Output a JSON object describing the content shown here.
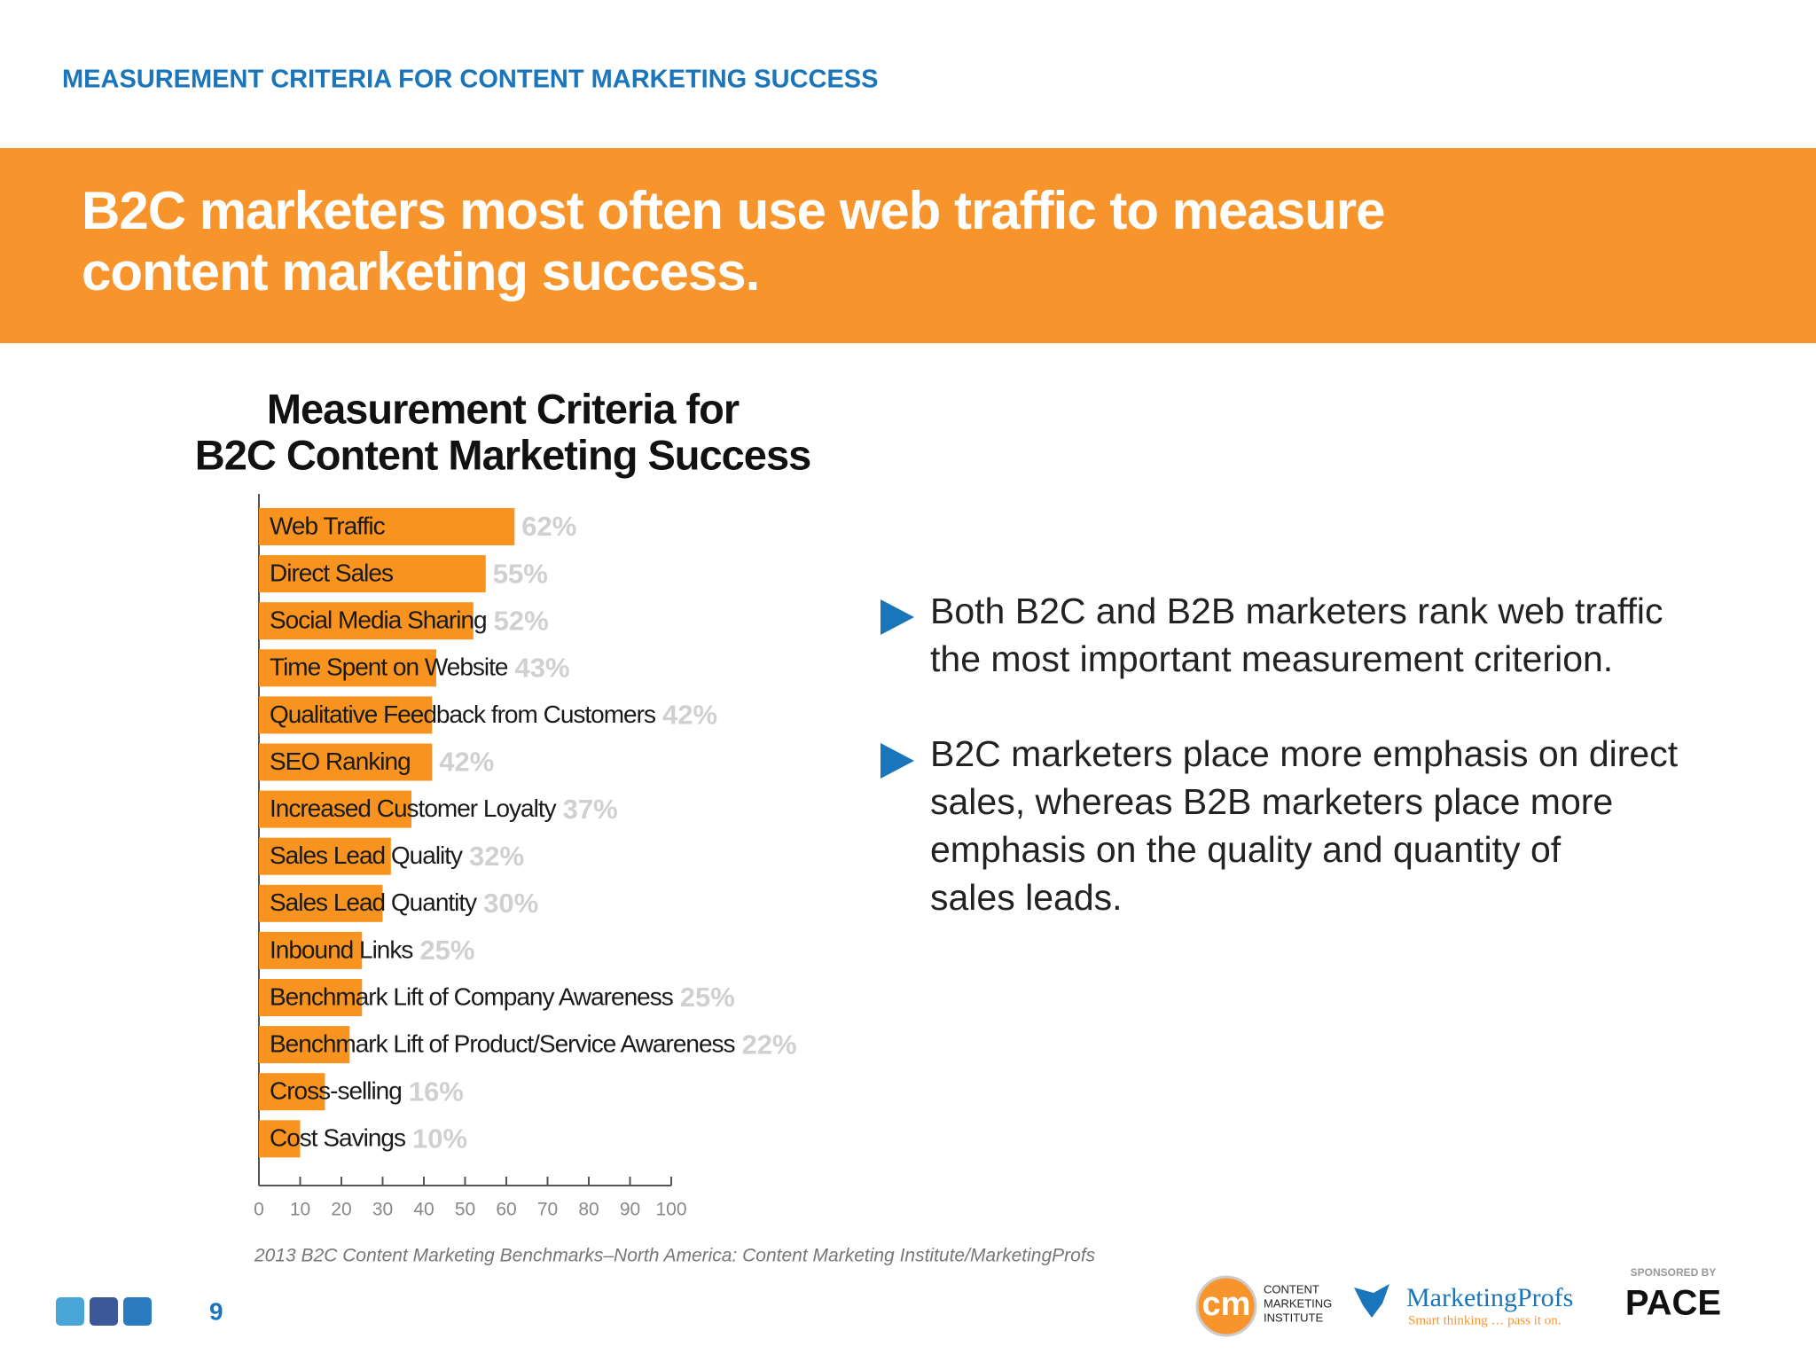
{
  "header": {
    "title": "MEASUREMENT CRITERIA FOR CONTENT MARKETING SUCCESS"
  },
  "headline": [
    "B2C marketers most often use web traffic to measure",
    "content marketing success."
  ],
  "chart_data": {
    "type": "bar",
    "orientation": "horizontal",
    "title": [
      "Measurement Criteria for",
      "B2C Content Marketing Success"
    ],
    "categories": [
      "Web Traffic",
      "Direct Sales",
      "Social Media Sharing",
      "Time Spent on Website",
      "Qualitative Feedback from Customers",
      "SEO Ranking",
      "Increased Customer Loyalty",
      "Sales Lead Quality",
      "Sales Lead Quantity",
      "Inbound Links",
      "Benchmark Lift of Company Awareness",
      "Benchmark Lift of Product/Service Awareness",
      "Cross-selling",
      "Cost Savings"
    ],
    "values": [
      62,
      55,
      52,
      43,
      42,
      42,
      37,
      32,
      30,
      25,
      25,
      22,
      16,
      10
    ],
    "value_labels": [
      "62%",
      "55%",
      "52%",
      "43%",
      "42%",
      "42%",
      "37%",
      "32%",
      "30%",
      "25%",
      "25%",
      "22%",
      "16%",
      "10%"
    ],
    "color": "#f7931e",
    "xlim": [
      0,
      100
    ],
    "xticks": [
      0,
      10,
      20,
      30,
      40,
      50,
      60,
      70,
      80,
      90,
      100
    ]
  },
  "bullets": [
    [
      "Both B2C and B2B marketers rank web traffic",
      "the most important measurement criterion."
    ],
    [
      "B2C marketers place more emphasis on direct",
      "sales, whereas B2B marketers place more",
      "emphasis on the quality and quantity of",
      "sales leads."
    ]
  ],
  "source": "2013 B2C Content Marketing Benchmarks–North America: Content Marketing Institute/MarketingProfs",
  "page_number": "9",
  "logos": {
    "cmi_mark": "cm",
    "cmi_name": [
      "CONTENT",
      "MARKETING",
      "INSTITUTE"
    ],
    "mprofs_name": "MarketingProfs",
    "mprofs_tagline": "Smart thinking … pass it on.",
    "sponsor_caption": "SPONSORED BY",
    "sponsor_name": "PACE"
  }
}
